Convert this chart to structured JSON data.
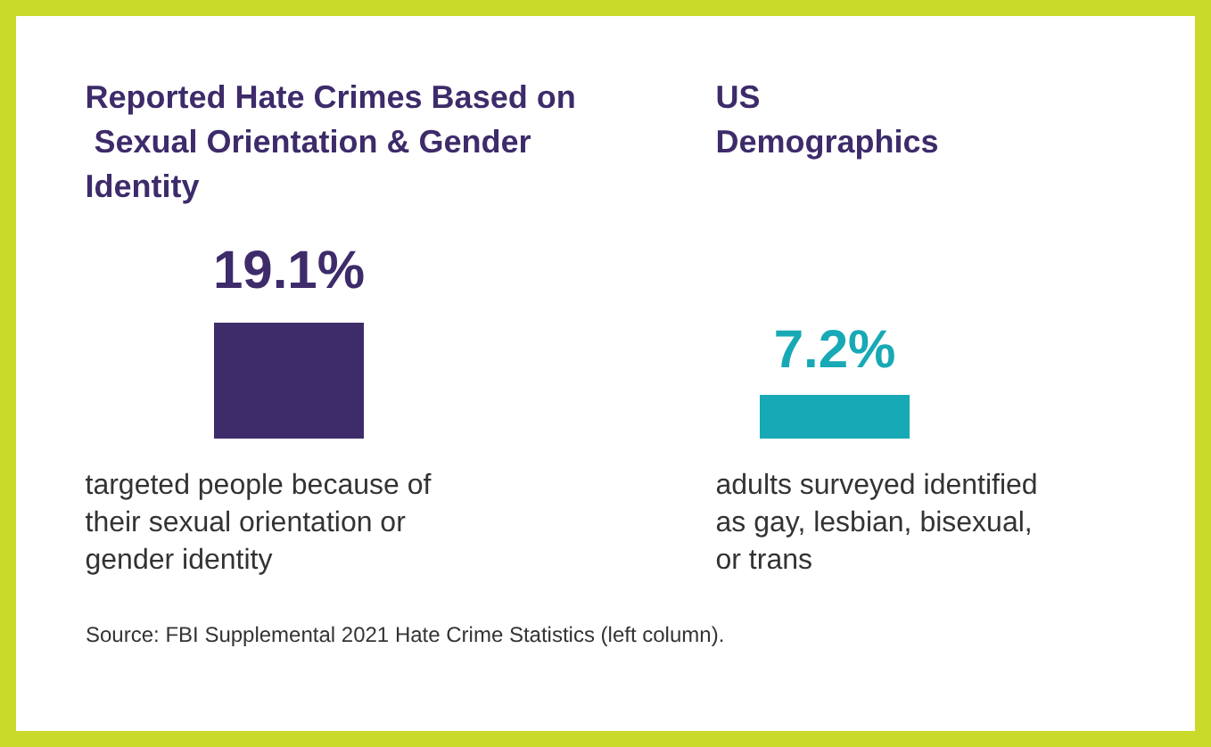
{
  "chart_data": {
    "type": "bar",
    "categories": [
      "Reported Hate Crimes Based on Sexual Orientation & Gender Identity",
      "US Demographics"
    ],
    "values": [
      19.1,
      7.2
    ],
    "colors": [
      "#3d2b6a",
      "#17a9b5"
    ],
    "value_labels": [
      "19.1%",
      "7.2%"
    ],
    "annotations": [
      "targeted people because of their sexual orientation or gender identity",
      "adults surveyed identified as gay, lesbian, bisexual, or trans",
      "Source: FBI Supplemental 2021 Hate Crime Statistics (left column)."
    ]
  }
}
